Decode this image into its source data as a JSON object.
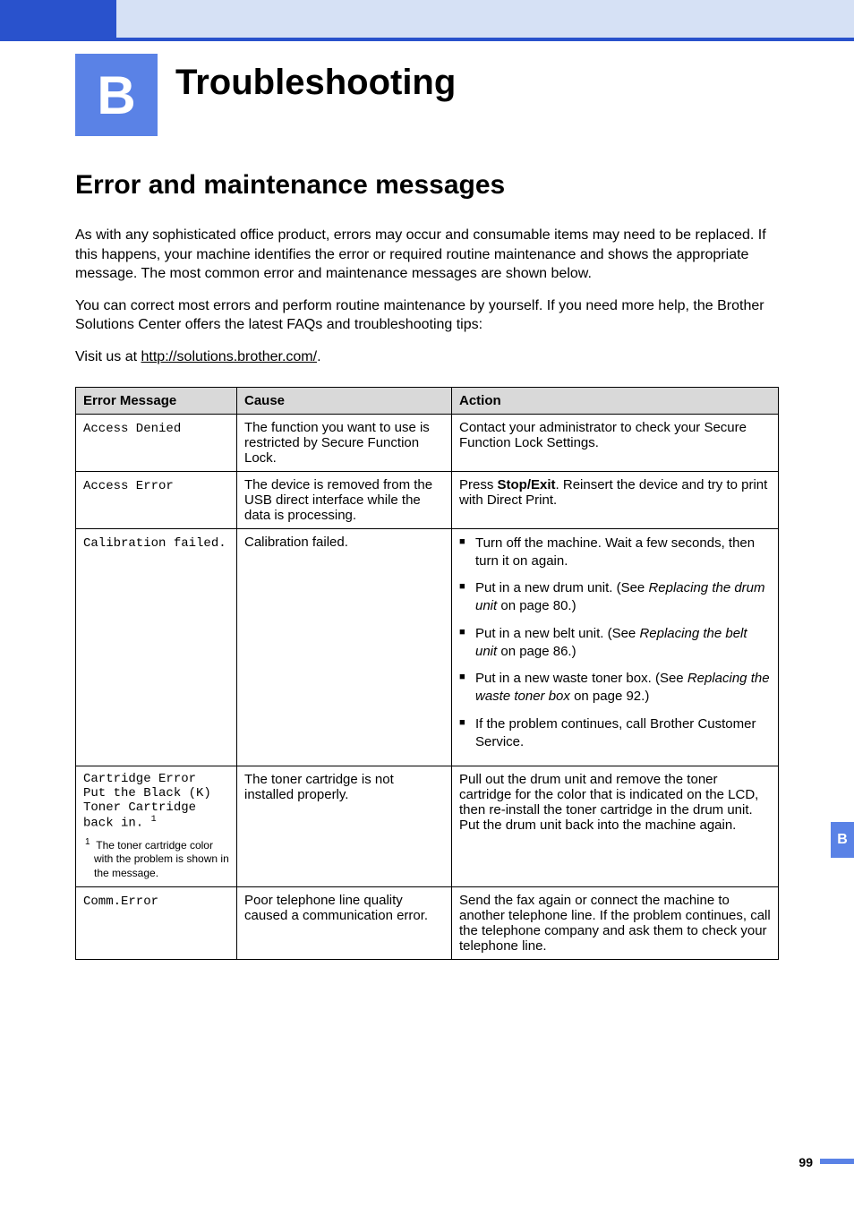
{
  "colors": {
    "banner_bg": "#d6e1f5",
    "accent": "#2952cc",
    "badge_bg": "#5a82e6",
    "badge_fg": "#ffffff",
    "table_header_bg": "#d9d9d9",
    "text": "#000000",
    "page_bg": "#ffffff"
  },
  "typography": {
    "chapter_title_fontsize": 40,
    "section_heading_fontsize": 30,
    "body_fontsize": 16,
    "table_fontsize": 15,
    "mono_fontsize": 14,
    "footnote_fontsize": 12,
    "page_number_fontsize": 14
  },
  "chapter": {
    "badge": "B",
    "title": "Troubleshooting"
  },
  "section": {
    "heading": "Error and maintenance messages",
    "para1": "As with any sophisticated office product, errors may occur and consumable items may need to be replaced. If this happens, your machine identifies the error or required routine maintenance and shows the appropriate message. The most common error and maintenance messages are shown below.",
    "para2": "You can correct most errors and perform routine maintenance by yourself. If you need more help, the Brother Solutions Center offers the latest FAQs and troubleshooting tips:",
    "visit_prefix": "Visit us at ",
    "visit_link": "http://solutions.brother.com/",
    "visit_suffix": "."
  },
  "table": {
    "headers": {
      "msg": "Error Message",
      "cause": "Cause",
      "action": "Action"
    },
    "rows": {
      "r0": {
        "msg": "Access Denied",
        "cause": "The function you want to use is restricted by Secure Function Lock.",
        "action": "Contact your administrator to check your Secure Function Lock Settings."
      },
      "r1": {
        "msg": "Access Error",
        "cause": "The device is removed from the USB direct interface while the data is processing.",
        "action_pre": "Press ",
        "action_bold": "Stop/Exit",
        "action_post": ". Reinsert the device and try to print with Direct Print."
      },
      "r2": {
        "msg": "Calibration failed.",
        "cause": "Calibration failed.",
        "b0": "Turn off the machine. Wait a few seconds, then turn it on again.",
        "b1_pre": "Put in a new drum unit. (See ",
        "b1_it": "Replacing the drum unit",
        "b1_post": " on page 80.)",
        "b2_pre": "Put in a new belt unit. (See ",
        "b2_it": "Replacing the belt unit",
        "b2_post": " on page 86.)",
        "b3_pre": "Put in a new waste toner box. (See ",
        "b3_it": "Replacing the waste toner box",
        "b3_post": " on page 92.)",
        "b4": "If the problem continues, call Brother Customer Service."
      },
      "r3": {
        "msg_l1": "Cartridge Error",
        "msg_l2": "Put the Black (K)",
        "msg_l3": "Toner Cartridge",
        "msg_l4": "back in.",
        "footnote_mark": "1",
        "footnote_text": "The toner cartridge color with the problem is shown in the message.",
        "cause": "The toner cartridge is not installed properly.",
        "action": "Pull out the drum unit and remove the toner cartridge for the color that is indicated on the LCD, then re-install the toner cartridge in the drum unit. Put the drum unit back into the machine again."
      },
      "r4": {
        "msg": "Comm.Error",
        "cause": "Poor telephone line quality caused a communication error.",
        "action": "Send the fax again or connect the machine to another telephone line. If the problem continues, call the telephone company and ask them to check your telephone line."
      }
    }
  },
  "side_tab": "B",
  "page_number": "99"
}
